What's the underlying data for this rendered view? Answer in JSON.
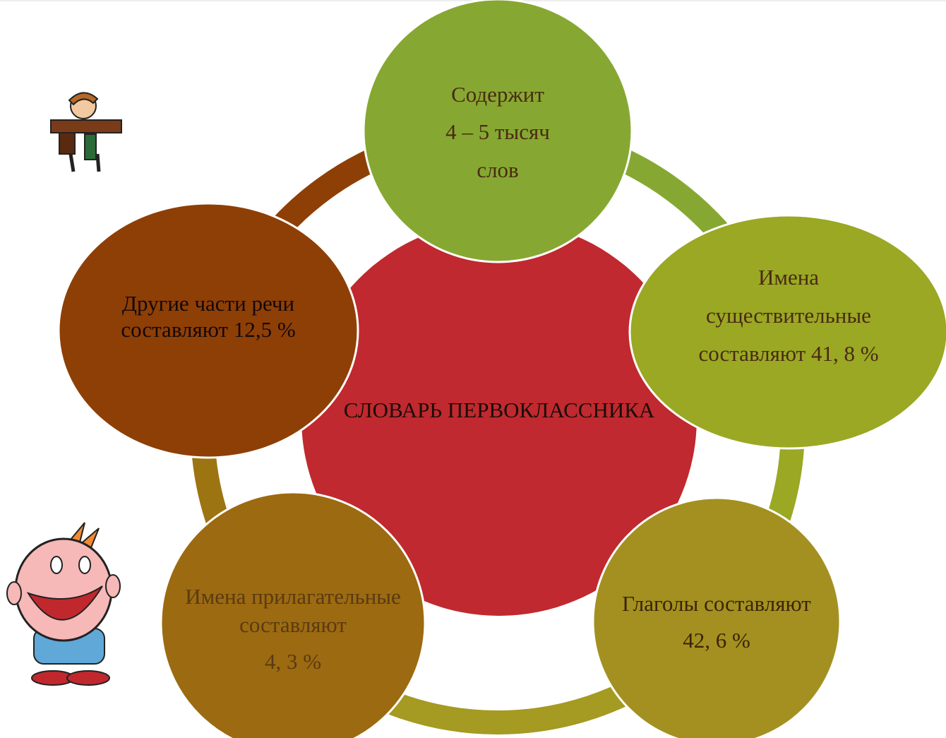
{
  "center": {
    "label": "СЛОВАРЬ ПЕРВОКЛАССНИКА"
  },
  "nodes": [
    {
      "lines": [
        "Содержит",
        "4 – 5 тысяч",
        "слов"
      ]
    },
    {
      "lines": [
        "Имена",
        "существительные",
        "составляют 41, 8 %"
      ]
    },
    {
      "lines": [
        "Глаголы составляют",
        "42, 6 %"
      ]
    },
    {
      "lines": [
        "Имена прилагательные",
        "составляют",
        "4, 3 %"
      ]
    },
    {
      "lines": [
        "Другие части речи",
        "составляют 12,5 %"
      ]
    }
  ]
}
